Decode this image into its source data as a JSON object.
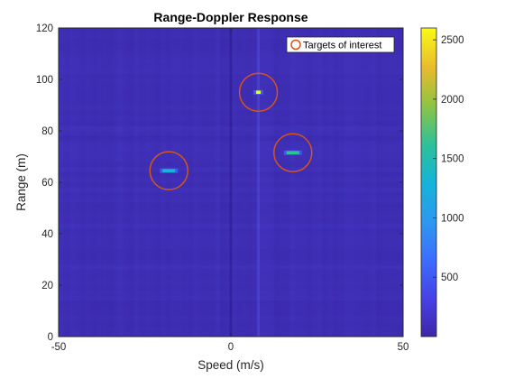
{
  "chart_data": {
    "type": "heatmap",
    "title": "Range-Doppler Response",
    "xlabel": "Speed (m/s)",
    "ylabel": "Range (m)",
    "xlim": [
      -50,
      50
    ],
    "ylim": [
      0,
      120
    ],
    "xticks": [
      -50,
      0,
      50
    ],
    "yticks": [
      0,
      20,
      40,
      60,
      80,
      100,
      120
    ],
    "colorbar": {
      "clim": [
        0,
        2600
      ],
      "ticks": [
        500,
        1000,
        1500,
        2000,
        2500
      ],
      "colormap": "parula"
    },
    "background_level": 180,
    "targets": [
      {
        "speed": 8,
        "range": 95,
        "peak": 2550
      },
      {
        "speed": 18,
        "range": 71.5,
        "peak": 1500
      },
      {
        "speed": -18,
        "range": 64.5,
        "peak": 1050
      }
    ],
    "highlight_circles": [
      {
        "speed": 8,
        "range": 95
      },
      {
        "speed": 18,
        "range": 71.5
      },
      {
        "speed": -18,
        "range": 64.5
      }
    ],
    "legend": {
      "entries": [
        "Targets of interest"
      ],
      "placement": "top-right",
      "marker": "circle",
      "marker_color": "#D95319"
    },
    "grid": false
  }
}
